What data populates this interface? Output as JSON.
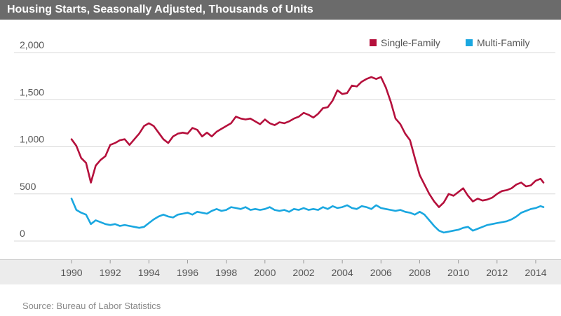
{
  "header": {
    "title": "Housing Starts, Seasonally Adjusted, Thousands of Units"
  },
  "footer": {
    "source": "Source: Bureau of Labor Statistics"
  },
  "colors": {
    "single_family": "#b5103c",
    "multi_family": "#1aa7e0",
    "title_bar": "#6b6b6b",
    "axis_band": "#ececec"
  },
  "chart_data": {
    "type": "line",
    "title": "Housing Starts, Seasonally Adjusted, Thousands of Units",
    "xlabel": "",
    "ylabel": "",
    "xlim": [
      1990,
      2014.8
    ],
    "ylim": [
      0,
      2000
    ],
    "x_ticks": [
      1990,
      1992,
      1994,
      1996,
      1998,
      2000,
      2002,
      2004,
      2006,
      2008,
      2010,
      2012,
      2014
    ],
    "y_ticks": [
      0,
      500,
      1000,
      1500,
      2000
    ],
    "y_tick_labels": [
      "0",
      "500",
      "1,000",
      "1,500",
      "2,000"
    ],
    "grid": "horizontal",
    "legend": "top-right",
    "series": [
      {
        "name": "Single-Family",
        "color": "#b5103c",
        "x": [
          1990.0,
          1990.25,
          1990.5,
          1990.75,
          1991.0,
          1991.25,
          1991.5,
          1991.75,
          1992.0,
          1992.25,
          1992.5,
          1992.75,
          1993.0,
          1993.25,
          1993.5,
          1993.75,
          1994.0,
          1994.25,
          1994.5,
          1994.75,
          1995.0,
          1995.25,
          1995.5,
          1995.75,
          1996.0,
          1996.25,
          1996.5,
          1996.75,
          1997.0,
          1997.25,
          1997.5,
          1997.75,
          1998.0,
          1998.25,
          1998.5,
          1998.75,
          1999.0,
          1999.25,
          1999.5,
          1999.75,
          2000.0,
          2000.25,
          2000.5,
          2000.75,
          2001.0,
          2001.25,
          2001.5,
          2001.75,
          2002.0,
          2002.25,
          2002.5,
          2002.75,
          2003.0,
          2003.25,
          2003.5,
          2003.75,
          2004.0,
          2004.25,
          2004.5,
          2004.75,
          2005.0,
          2005.25,
          2005.5,
          2005.75,
          2006.0,
          2006.25,
          2006.5,
          2006.75,
          2007.0,
          2007.25,
          2007.5,
          2007.75,
          2008.0,
          2008.25,
          2008.5,
          2008.75,
          2009.0,
          2009.25,
          2009.5,
          2009.75,
          2010.0,
          2010.25,
          2010.5,
          2010.75,
          2011.0,
          2011.25,
          2011.5,
          2011.75,
          2012.0,
          2012.25,
          2012.5,
          2012.75,
          2013.0,
          2013.25,
          2013.5,
          2013.75,
          2014.0,
          2014.25,
          2014.4
        ],
        "values": [
          1080,
          1010,
          880,
          830,
          620,
          800,
          860,
          900,
          1020,
          1040,
          1070,
          1080,
          1020,
          1080,
          1140,
          1220,
          1250,
          1220,
          1150,
          1080,
          1040,
          1110,
          1140,
          1150,
          1140,
          1200,
          1180,
          1110,
          1150,
          1110,
          1160,
          1190,
          1220,
          1250,
          1320,
          1300,
          1290,
          1300,
          1270,
          1240,
          1290,
          1250,
          1230,
          1260,
          1250,
          1270,
          1300,
          1320,
          1360,
          1340,
          1310,
          1350,
          1410,
          1420,
          1490,
          1600,
          1560,
          1570,
          1650,
          1640,
          1690,
          1720,
          1740,
          1720,
          1740,
          1630,
          1480,
          1300,
          1240,
          1140,
          1070,
          880,
          700,
          600,
          500,
          420,
          360,
          410,
          500,
          480,
          520,
          560,
          480,
          420,
          450,
          430,
          440,
          460,
          500,
          530,
          540,
          560,
          600,
          620,
          580,
          590,
          640,
          660,
          620
        ],
        "dash": null
      },
      {
        "name": "Multi-Family",
        "color": "#1aa7e0",
        "x": [
          1990.0,
          1990.25,
          1990.5,
          1990.75,
          1991.0,
          1991.25,
          1991.5,
          1991.75,
          1992.0,
          1992.25,
          1992.5,
          1992.75,
          1993.0,
          1993.25,
          1993.5,
          1993.75,
          1994.0,
          1994.25,
          1994.5,
          1994.75,
          1995.0,
          1995.25,
          1995.5,
          1995.75,
          1996.0,
          1996.25,
          1996.5,
          1996.75,
          1997.0,
          1997.25,
          1997.5,
          1997.75,
          1998.0,
          1998.25,
          1998.5,
          1998.75,
          1999.0,
          1999.25,
          1999.5,
          1999.75,
          2000.0,
          2000.25,
          2000.5,
          2000.75,
          2001.0,
          2001.25,
          2001.5,
          2001.75,
          2002.0,
          2002.25,
          2002.5,
          2002.75,
          2003.0,
          2003.25,
          2003.5,
          2003.75,
          2004.0,
          2004.25,
          2004.5,
          2004.75,
          2005.0,
          2005.25,
          2005.5,
          2005.75,
          2006.0,
          2006.25,
          2006.5,
          2006.75,
          2007.0,
          2007.25,
          2007.5,
          2007.75,
          2008.0,
          2008.25,
          2008.5,
          2008.75,
          2009.0,
          2009.25,
          2009.5,
          2009.75,
          2010.0,
          2010.25,
          2010.5,
          2010.75,
          2011.0,
          2011.25,
          2011.5,
          2011.75,
          2012.0,
          2012.25,
          2012.5,
          2012.75,
          2013.0,
          2013.25,
          2013.5,
          2013.75,
          2014.0,
          2014.25,
          2014.4
        ],
        "values": [
          450,
          330,
          300,
          280,
          180,
          220,
          200,
          180,
          170,
          180,
          160,
          170,
          160,
          150,
          140,
          150,
          190,
          230,
          260,
          280,
          260,
          250,
          280,
          290,
          300,
          280,
          310,
          300,
          290,
          320,
          340,
          320,
          330,
          360,
          350,
          340,
          360,
          330,
          340,
          330,
          340,
          360,
          330,
          320,
          330,
          310,
          340,
          330,
          350,
          330,
          340,
          330,
          360,
          340,
          370,
          350,
          360,
          380,
          350,
          340,
          370,
          360,
          340,
          380,
          350,
          340,
          330,
          320,
          330,
          310,
          300,
          280,
          310,
          280,
          220,
          160,
          110,
          90,
          100,
          110,
          120,
          140,
          150,
          110,
          130,
          150,
          170,
          180,
          190,
          200,
          210,
          230,
          260,
          300,
          320,
          340,
          350,
          370,
          360
        ]
      }
    ]
  }
}
